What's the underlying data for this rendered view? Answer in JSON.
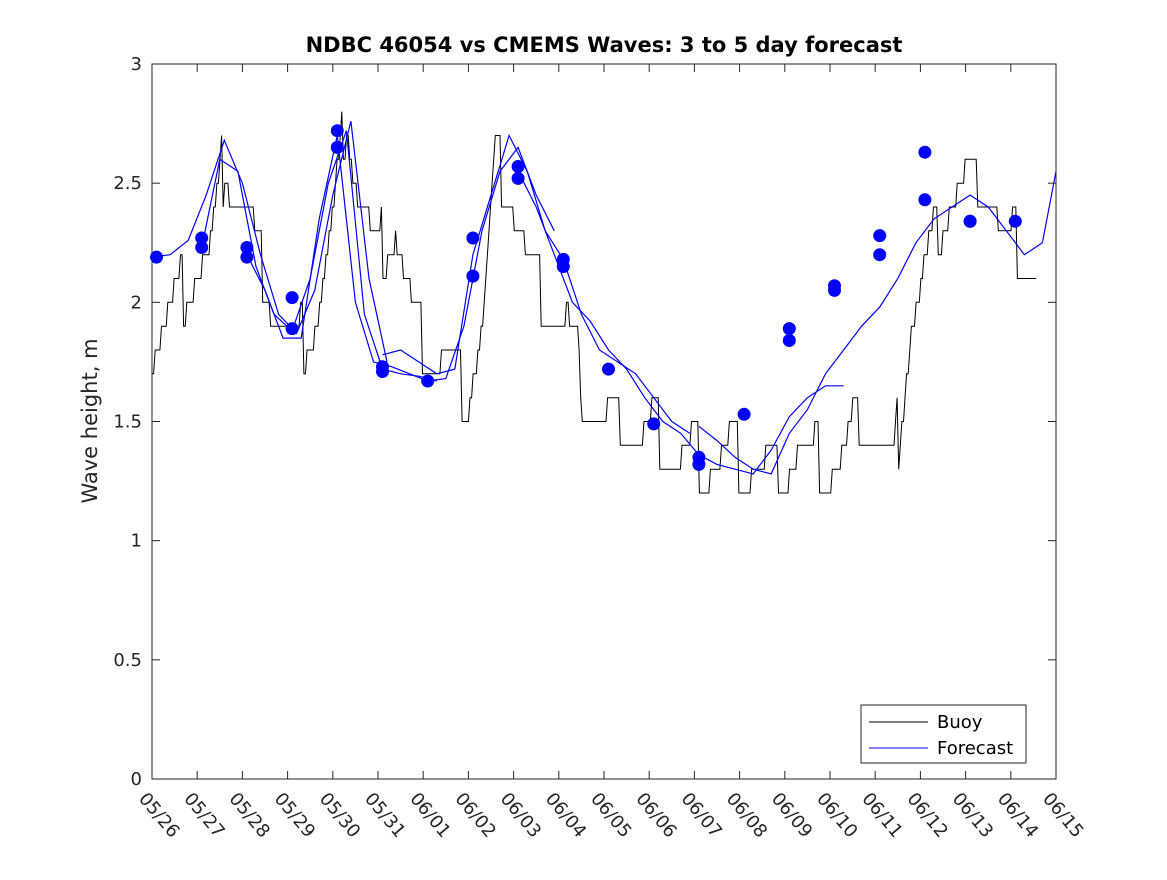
{
  "chart_data": {
    "type": "line",
    "title": "NDBC 46054 vs CMEMS Waves: 3 to 5 day forecast",
    "xlabel": "",
    "ylabel": "Wave height, m",
    "xlim": [
      "05/26",
      "06/15"
    ],
    "ylim": [
      0,
      3
    ],
    "yticks": [
      "0",
      "0.5",
      "1",
      "1.5",
      "2",
      "2.5",
      "3"
    ],
    "xticks": [
      "05/26",
      "05/27",
      "05/28",
      "05/29",
      "05/30",
      "05/31",
      "06/01",
      "06/02",
      "06/03",
      "06/04",
      "06/05",
      "06/06",
      "06/07",
      "06/08",
      "06/09",
      "06/10",
      "06/11",
      "06/12",
      "06/13",
      "06/14",
      "06/15"
    ],
    "grid": false,
    "legend": {
      "location": "bottom-right",
      "entries": [
        {
          "label": "Buoy",
          "color": "#000000"
        },
        {
          "label": "Forecast",
          "color": "#0000ff"
        }
      ]
    },
    "colors": {
      "buoy": "#000000",
      "forecast": "#0000ff",
      "axes": "#262626"
    },
    "buoy": {
      "x": [
        0,
        0.5,
        0.9,
        1.3,
        1.6,
        2.0,
        2.4,
        2.8,
        3.2,
        3.6,
        4.0,
        4.3,
        4.6,
        5.0,
        5.4,
        5.8,
        6.2,
        6.6,
        7.0,
        7.3,
        7.6,
        8.0,
        8.4,
        8.8,
        9.2,
        9.6,
        10.0,
        10.4,
        10.8,
        11.2,
        11.6,
        12.0,
        12.4,
        12.8,
        13.2,
        13.6,
        14.0,
        14.4,
        14.8,
        15.2,
        15.6,
        16.0,
        16.4,
        16.8,
        17.2,
        17.6,
        18.0,
        18.4,
        18.8,
        19.2,
        19.6
      ],
      "y": [
        1.8,
        2.0,
        2.1,
        2.2,
        2.6,
        2.4,
        2.2,
        1.9,
        1.8,
        1.9,
        2.3,
        2.8,
        2.4,
        2.2,
        2.3,
        1.9,
        1.8,
        1.7,
        1.6,
        1.9,
        2.6,
        2.4,
        2.1,
        2.0,
        1.9,
        1.6,
        1.5,
        1.5,
        1.4,
        1.5,
        1.3,
        1.4,
        1.3,
        1.4,
        1.3,
        1.3,
        1.3,
        1.4,
        1.3,
        1.3,
        1.5,
        1.4,
        1.3,
        1.9,
        2.2,
        2.4,
        2.5,
        2.5,
        2.3,
        2.2,
        2.1
      ]
    },
    "forecast": {
      "series": [
        {
          "x": [
            0,
            0.4,
            0.8,
            1.2,
            1.6,
            2.0,
            2.4,
            2.8,
            3.2,
            3.6,
            4.0,
            4.4,
            4.8,
            5.2
          ],
          "y": [
            2.19,
            2.2,
            2.26,
            2.45,
            2.68,
            2.5,
            2.2,
            1.95,
            1.87,
            2.05,
            2.45,
            2.76,
            2.1,
            1.75
          ]
        },
        {
          "x": [
            1.1,
            1.5,
            1.9,
            2.3,
            2.7,
            3.1,
            3.5,
            3.9,
            4.3,
            4.7,
            5.1,
            5.5,
            5.9,
            6.3
          ],
          "y": [
            2.23,
            2.6,
            2.55,
            2.15,
            1.95,
            1.88,
            2.1,
            2.5,
            2.72,
            1.95,
            1.72,
            1.7,
            1.69,
            1.67
          ]
        },
        {
          "x": [
            2.1,
            2.5,
            2.9,
            3.3,
            3.7,
            4.1,
            4.5,
            4.9,
            5.3,
            5.7,
            6.1,
            6.5,
            6.9,
            7.3,
            7.7,
            8.1,
            8.5,
            8.9
          ],
          "y": [
            2.2,
            2.05,
            1.85,
            1.85,
            2.35,
            2.7,
            2.0,
            1.75,
            1.73,
            1.7,
            1.67,
            1.68,
            1.9,
            2.3,
            2.55,
            2.65,
            2.45,
            2.3
          ]
        },
        {
          "x": [
            5.1,
            5.5,
            5.9,
            6.3,
            6.7,
            7.1,
            7.5,
            7.9,
            8.3,
            8.7,
            9.1,
            9.5,
            9.9,
            10.3,
            10.7,
            11.1,
            11.5,
            11.9
          ],
          "y": [
            1.78,
            1.8,
            1.75,
            1.7,
            1.72,
            2.2,
            2.45,
            2.7,
            2.55,
            2.3,
            2.18,
            1.95,
            1.8,
            1.75,
            1.7,
            1.6,
            1.5,
            1.45
          ]
        },
        {
          "x": [
            8.1,
            8.5,
            8.9,
            9.3,
            9.7,
            10.1,
            10.5,
            10.9,
            11.3,
            11.7,
            12.1,
            12.5,
            12.9,
            13.3,
            13.7,
            14.1,
            14.5,
            14.9,
            15.3
          ],
          "y": [
            2.55,
            2.4,
            2.2,
            2.0,
            1.92,
            1.8,
            1.72,
            1.6,
            1.5,
            1.45,
            1.36,
            1.32,
            1.3,
            1.28,
            1.38,
            1.52,
            1.6,
            1.65,
            1.65
          ]
        },
        {
          "x": [
            12.1,
            12.5,
            12.9,
            13.3,
            13.7,
            14.1,
            14.5,
            14.9,
            15.3,
            15.7,
            16.1,
            16.5,
            16.9,
            17.3,
            17.7,
            18.1,
            18.5,
            18.9,
            19.3,
            19.7,
            20.0
          ],
          "y": [
            1.48,
            1.42,
            1.35,
            1.3,
            1.28,
            1.45,
            1.55,
            1.7,
            1.8,
            1.9,
            1.98,
            2.1,
            2.25,
            2.35,
            2.4,
            2.45,
            2.4,
            2.3,
            2.2,
            2.25,
            2.55
          ]
        }
      ],
      "markers": {
        "x": [
          0.1,
          1.1,
          1.1,
          2.1,
          2.1,
          3.1,
          3.1,
          4.1,
          4.1,
          5.1,
          5.1,
          6.1,
          7.1,
          7.1,
          8.1,
          8.1,
          9.1,
          9.1,
          10.1,
          11.1,
          12.1,
          12.1,
          13.1,
          14.1,
          14.1,
          15.1,
          15.1,
          16.1,
          16.1,
          17.1,
          17.1,
          18.1,
          18.1,
          19.1
        ],
        "y": [
          2.19,
          2.27,
          2.23,
          2.23,
          2.19,
          2.02,
          1.89,
          2.72,
          2.65,
          1.73,
          1.71,
          1.67,
          2.27,
          2.11,
          2.57,
          2.52,
          2.18,
          2.15,
          1.72,
          1.49,
          1.35,
          1.32,
          1.53,
          1.89,
          1.84,
          2.07,
          2.05,
          2.28,
          2.2,
          2.63,
          2.43,
          2.34,
          2.34,
          2.34
        ]
      }
    }
  }
}
